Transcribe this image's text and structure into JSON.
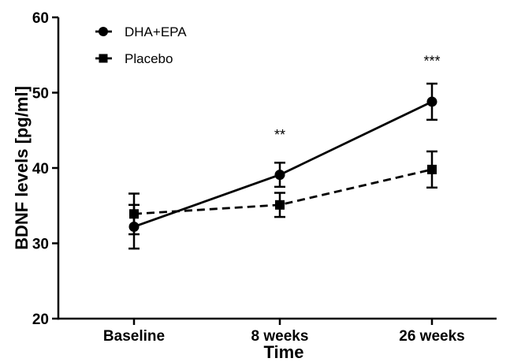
{
  "chart_data": {
    "type": "line",
    "categories": [
      "Baseline",
      "8 weeks",
      "26 weeks"
    ],
    "xlabel": "Time",
    "ylabel": "BDNF levels [pg/ml]",
    "ylim": [
      20,
      60
    ],
    "yticks": [
      "20",
      "30",
      "40",
      "50",
      "60"
    ],
    "grid": false,
    "legend_position": "top-left",
    "series": [
      {
        "name": "DHA+EPA",
        "marker": "circle",
        "line_style": "solid",
        "values": [
          32.2,
          39.1,
          48.8
        ],
        "errors": [
          2.9,
          1.6,
          2.4
        ]
      },
      {
        "name": "Placebo",
        "marker": "square",
        "line_style": "dashed",
        "values": [
          33.9,
          35.1,
          39.8
        ],
        "errors": [
          2.7,
          1.6,
          2.4
        ]
      }
    ],
    "annotations": [
      {
        "category": "8 weeks",
        "text": "**",
        "y": 44.6
      },
      {
        "category": "26 weeks",
        "text": "***",
        "y": 54.4
      }
    ]
  }
}
